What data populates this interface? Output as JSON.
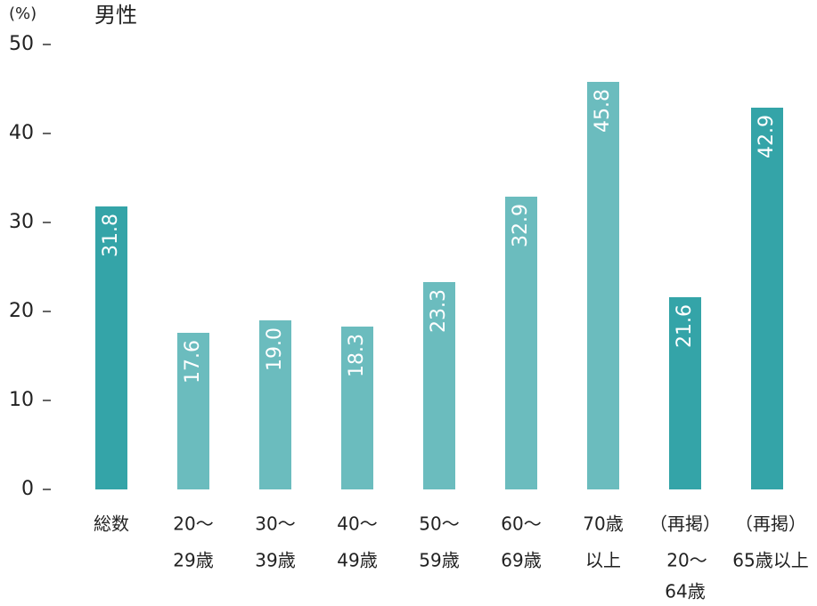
{
  "chart_data": {
    "type": "bar",
    "title": "男性",
    "y_label": "(%)",
    "categories": [
      [
        "総数"
      ],
      [
        "20〜",
        "29歳"
      ],
      [
        "30〜",
        "39歳"
      ],
      [
        "40〜",
        "49歳"
      ],
      [
        "50〜",
        "59歳"
      ],
      [
        "60〜",
        "69歳"
      ],
      [
        "70歳",
        "以上"
      ],
      [
        "（再掲）",
        "20〜",
        "64歳"
      ],
      [
        "（再掲）",
        "65歳以上"
      ]
    ],
    "values": [
      31.8,
      17.6,
      19.0,
      18.3,
      23.3,
      32.9,
      45.8,
      21.6,
      42.9
    ],
    "value_labels": [
      "31.8",
      "17.6",
      "19.0",
      "18.3",
      "23.3",
      "32.9",
      "45.8",
      "21.6",
      "42.9"
    ],
    "colors": [
      "#34a4a8",
      "#6bbcbe",
      "#6bbcbe",
      "#6bbcbe",
      "#6bbcbe",
      "#6bbcbe",
      "#6bbcbe",
      "#34a4a8",
      "#34a4a8"
    ],
    "ylim": [
      0,
      50
    ],
    "yticks": [
      0,
      10,
      20,
      30,
      40,
      50
    ]
  }
}
